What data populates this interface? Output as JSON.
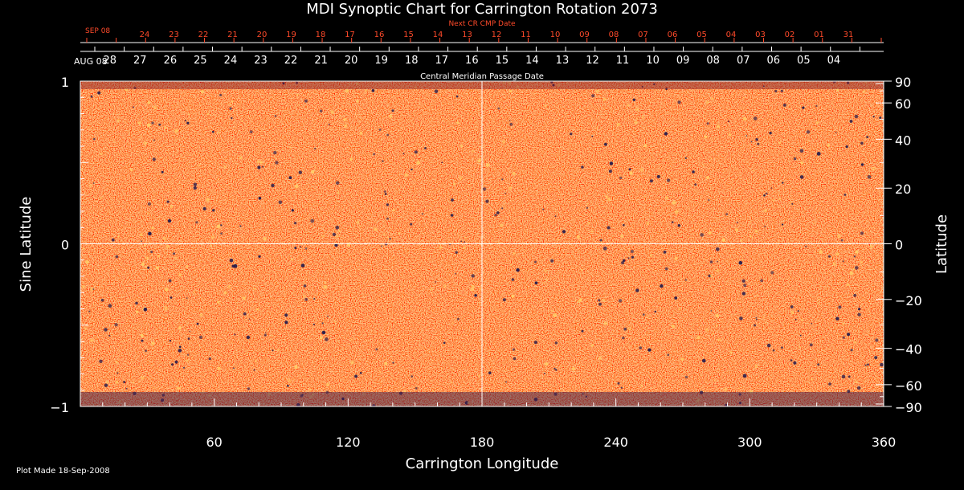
{
  "chart_data": {
    "type": "heatmap",
    "title": "MDI Synoptic Chart for Carrington Rotation 2073",
    "xlabel": "Carrington Longitude",
    "ylabel_left": "Sine Latitude",
    "ylabel_right": "Latitude",
    "xlim": [
      0,
      360
    ],
    "ylim": [
      -1,
      1
    ],
    "x_ticks": [
      60,
      120,
      180,
      240,
      300,
      360
    ],
    "x_tick_labels": [
      "60",
      "120",
      "180",
      "240",
      "300",
      "360"
    ],
    "y_left_ticks": [
      {
        "value": 1,
        "label": "1"
      },
      {
        "value": 0,
        "label": "0"
      },
      {
        "value": -1,
        "label": "−1"
      }
    ],
    "y_right_ticks": [
      {
        "value": 90,
        "label": "90"
      },
      {
        "value": 60,
        "label": "60"
      },
      {
        "value": 40,
        "label": "40"
      },
      {
        "value": 20,
        "label": "20"
      },
      {
        "value": 0,
        "label": "0"
      },
      {
        "value": -20,
        "label": "−20"
      },
      {
        "value": -40,
        "label": "−40"
      },
      {
        "value": -60,
        "label": "−60"
      },
      {
        "value": -90,
        "label": "−90"
      }
    ],
    "cmp_axis": {
      "label": "Central Meridian Passage Date",
      "start_label": "AUG 08",
      "dates": [
        "28",
        "27",
        "26",
        "25",
        "24",
        "23",
        "22",
        "21",
        "20",
        "19",
        "18",
        "17",
        "16",
        "15",
        "14",
        "13",
        "12",
        "11",
        "10",
        "09",
        "08",
        "07",
        "06",
        "05",
        "04"
      ]
    },
    "next_cr_axis": {
      "label": "Next CR CMP Date",
      "start_label": "SEP 08",
      "dates": [
        "24",
        "23",
        "22",
        "21",
        "20",
        "19",
        "18",
        "17",
        "16",
        "15",
        "14",
        "13",
        "12",
        "11",
        "10",
        "09",
        "08",
        "07",
        "06",
        "05",
        "04",
        "03",
        "02",
        "01",
        "31"
      ]
    },
    "grid": {
      "vertical_line_at_longitude": 180,
      "horizontal_line_at_sine_latitude": 0
    },
    "colormap": "magnetogram red-orange-yellow with dark blue polarity spots"
  },
  "footer": "Plot Made 18-Sep-2008",
  "colors": {
    "background": "#000000",
    "axis": "#ffffff",
    "secondary_axis": "#ff4a2a",
    "map_base": "#ff5a14",
    "map_dark": "#b81e00",
    "map_light": "#ffd06a",
    "spot": "#241a4a"
  }
}
